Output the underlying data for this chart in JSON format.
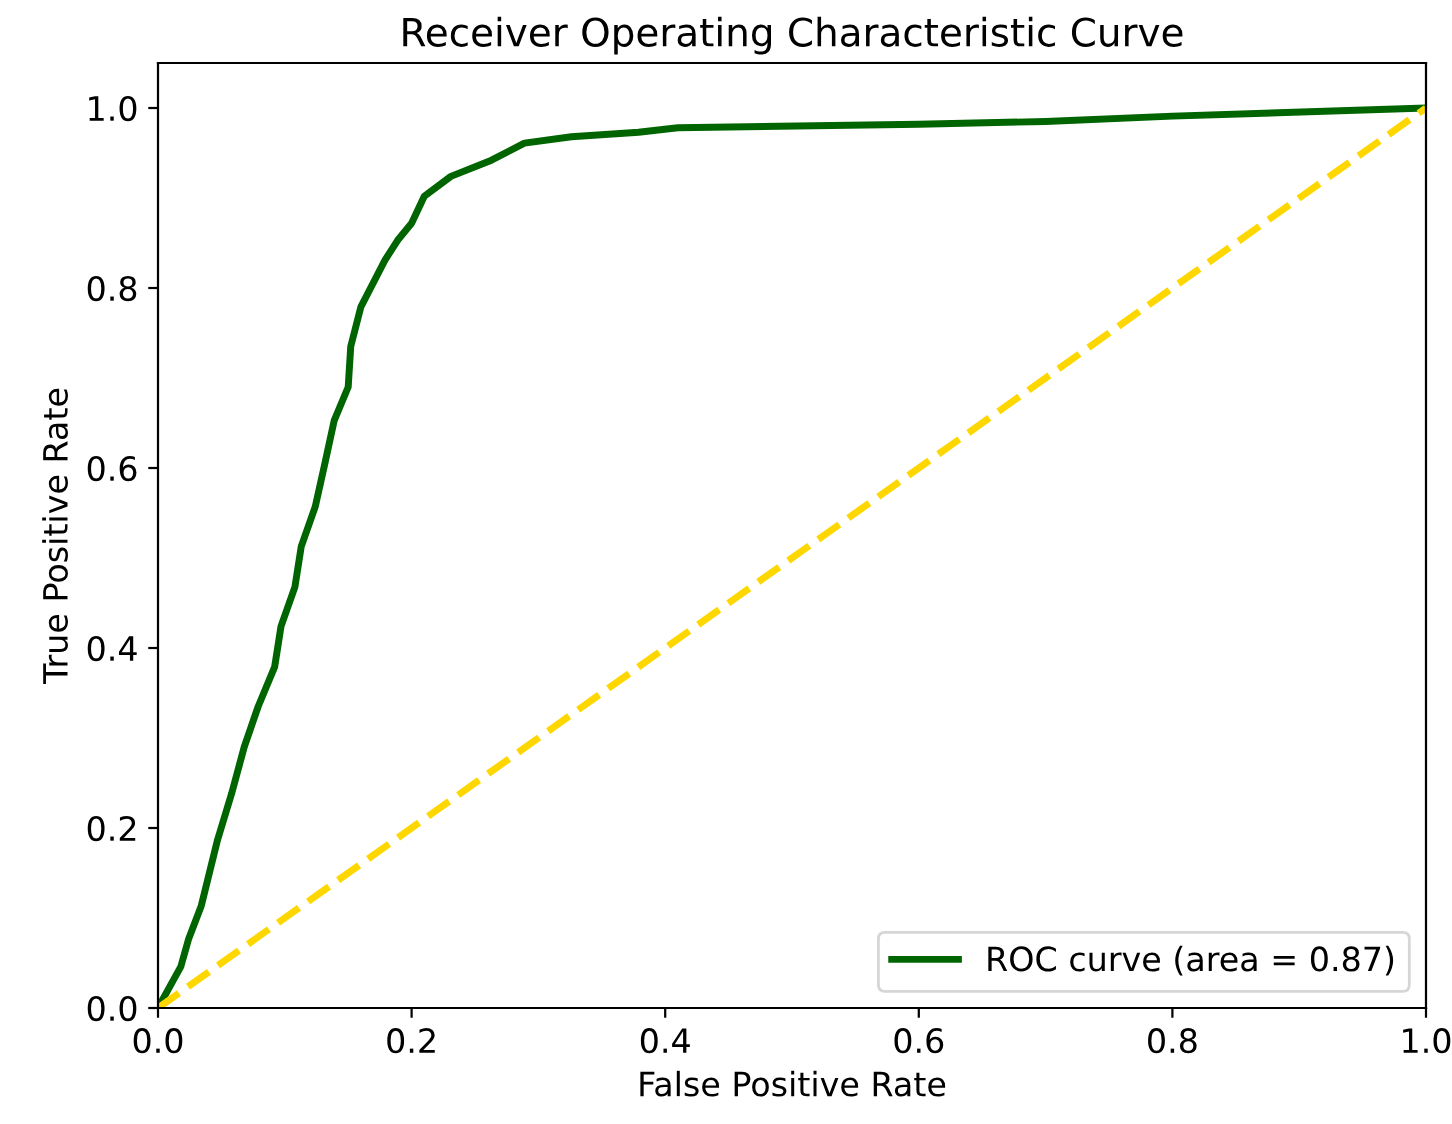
{
  "chart_data": {
    "type": "line",
    "title": "Receiver Operating Characteristic Curve",
    "xlabel": "False Positive Rate",
    "ylabel": "True Positive Rate",
    "xlim": [
      0,
      1
    ],
    "ylim": [
      0,
      1.05
    ],
    "xticks": [
      {
        "value": 0,
        "label": "0.0"
      },
      0.2,
      0.4,
      0.6,
      0.8,
      {
        "value": 1,
        "label": "1.0"
      }
    ],
    "yticks": [
      {
        "value": 0,
        "label": "0.0"
      },
      0.2,
      0.4,
      0.6,
      0.8,
      {
        "value": 1,
        "label": "1.0"
      }
    ],
    "grid": false,
    "legend": "bottom right",
    "series": [
      {
        "name": "ROC curve (area = 0.87)",
        "color": "#006400",
        "line_style": "solid",
        "x": [
          0,
          0.018,
          0.024,
          0.034,
          0.047,
          0.058,
          0.068,
          0.079,
          0.092,
          0.097,
          0.108,
          0.113,
          0.124,
          0.131,
          0.139,
          0.15,
          0.152,
          0.16,
          0.179,
          0.189,
          0.2,
          0.21,
          0.231,
          0.263,
          0.289,
          0.326,
          0.379,
          0.41,
          0.6,
          0.7,
          0.8,
          1.0
        ],
        "values": [
          0,
          0.046,
          0.076,
          0.113,
          0.187,
          0.238,
          0.29,
          0.335,
          0.379,
          0.424,
          0.468,
          0.513,
          0.557,
          0.601,
          0.653,
          0.69,
          0.735,
          0.779,
          0.831,
          0.853,
          0.872,
          0.902,
          0.924,
          0.942,
          0.961,
          0.968,
          0.973,
          0.978,
          0.982,
          0.985,
          0.991,
          1.0
        ]
      },
      {
        "color": "#ffd700",
        "line_style": "dashed",
        "x": [
          0,
          1
        ],
        "values": [
          0,
          1
        ]
      }
    ]
  }
}
